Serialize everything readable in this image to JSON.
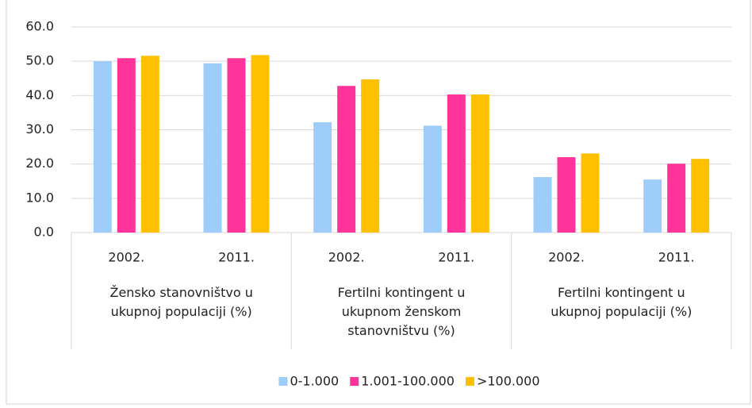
{
  "chart_data": {
    "type": "bar",
    "categories": [
      "2002.",
      "2011.",
      "2002.",
      "2011.",
      "2002.",
      "2011."
    ],
    "groups": [
      "Žensko stanovništvo u ukupnoj populaciji (%)",
      "Fertilni kontingent u ukupnom ženskom stanovništvu (%)",
      "Fertilni kontingent u ukupnoj populaciji (%)"
    ],
    "series": [
      {
        "name": "0-1.000",
        "color": "#9fcdf9",
        "values": [
          50.0,
          49.4,
          32.2,
          31.2,
          16.2,
          15.5
        ]
      },
      {
        "name": "1.001-100.000",
        "color": "#ff3399",
        "values": [
          50.9,
          50.9,
          42.8,
          40.3,
          22.0,
          20.1
        ]
      },
      {
        "name": ">100.000",
        "color": "#ffc000",
        "values": [
          51.6,
          51.8,
          44.7,
          40.3,
          23.1,
          21.5
        ]
      }
    ],
    "ylim": [
      0,
      60
    ],
    "yticks": [
      {
        "value": 0,
        "label": "0.0"
      },
      {
        "value": 10,
        "label": "10.0"
      },
      {
        "value": 20,
        "label": "20.0"
      },
      {
        "value": 30,
        "label": "30.0"
      },
      {
        "value": 40,
        "label": "40.0"
      },
      {
        "value": 50,
        "label": "50.0"
      },
      {
        "value": 60,
        "label": "60.0"
      }
    ],
    "grid": true,
    "legend": "bottom"
  }
}
